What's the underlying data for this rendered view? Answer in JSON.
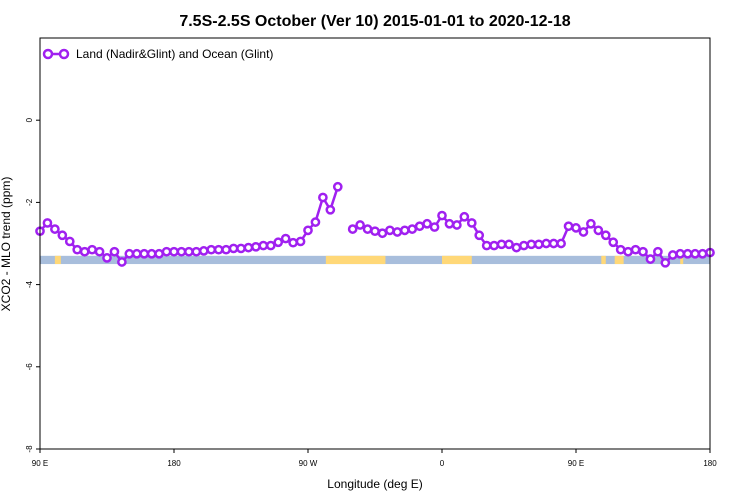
{
  "chart_data": {
    "type": "line",
    "title": "7.5S-2.5S October (Ver 10)   2015-01-01 to 2020-12-18",
    "xlabel": "Longitude (deg E)",
    "ylabel": "XCO2 - MLO trend (ppm)",
    "xlim": [
      90,
      450
    ],
    "ylim": [
      -8,
      2
    ],
    "x_ticks": [
      {
        "value": 90,
        "label": "90 E"
      },
      {
        "value": 180,
        "label": "180"
      },
      {
        "value": 270,
        "label": "90 W"
      },
      {
        "value": 360,
        "label": "0"
      },
      {
        "value": 450,
        "label": "90 E"
      },
      {
        "value": 540,
        "label": "180"
      }
    ],
    "y_ticks": [
      {
        "value": 0,
        "label": "0"
      },
      {
        "value": -2,
        "label": "-2"
      },
      {
        "value": -4,
        "label": "-4"
      },
      {
        "value": -6,
        "label": "-6"
      },
      {
        "value": -8,
        "label": "-8"
      }
    ],
    "grid": false,
    "legend_position": "top-left",
    "series": [
      {
        "name": "Land (Nadir&Glint) and Ocean (Glint)",
        "color": "#a020f0",
        "points": [
          [
            90,
            -2.7
          ],
          [
            95,
            -2.5
          ],
          [
            100,
            -2.65
          ],
          [
            105,
            -2.8
          ],
          [
            110,
            -2.95
          ],
          [
            115,
            -3.15
          ],
          [
            120,
            -3.2
          ],
          [
            125,
            -3.15
          ],
          [
            130,
            -3.2
          ],
          [
            135,
            -3.35
          ],
          [
            140,
            -3.2
          ],
          [
            145,
            -3.45
          ],
          [
            150,
            -3.25
          ],
          [
            155,
            -3.25
          ],
          [
            160,
            -3.25
          ],
          [
            165,
            -3.25
          ],
          [
            170,
            -3.25
          ],
          [
            175,
            -3.2
          ],
          [
            180,
            -3.2
          ],
          [
            185,
            -3.2
          ],
          [
            190,
            -3.2
          ],
          [
            195,
            -3.2
          ],
          [
            200,
            -3.18
          ],
          [
            205,
            -3.15
          ],
          [
            210,
            -3.15
          ],
          [
            215,
            -3.15
          ],
          [
            220,
            -3.12
          ],
          [
            225,
            -3.12
          ],
          [
            230,
            -3.1
          ],
          [
            235,
            -3.08
          ],
          [
            240,
            -3.05
          ],
          [
            245,
            -3.05
          ],
          [
            250,
            -2.97
          ],
          [
            255,
            -2.88
          ],
          [
            260,
            -2.98
          ],
          [
            265,
            -2.95
          ],
          [
            270,
            -2.68
          ],
          [
            275,
            -2.48
          ],
          [
            280,
            -1.88
          ],
          [
            285,
            -2.18
          ],
          [
            290,
            -1.62
          ],
          null,
          [
            300,
            -2.65
          ],
          [
            305,
            -2.55
          ],
          [
            310,
            -2.65
          ],
          [
            315,
            -2.7
          ],
          [
            320,
            -2.75
          ],
          [
            325,
            -2.68
          ],
          [
            330,
            -2.72
          ],
          [
            335,
            -2.68
          ],
          [
            340,
            -2.65
          ],
          [
            345,
            -2.58
          ],
          [
            350,
            -2.52
          ],
          [
            355,
            -2.6
          ],
          [
            360,
            -2.32
          ],
          [
            365,
            -2.52
          ],
          [
            370,
            -2.55
          ],
          [
            375,
            -2.35
          ],
          [
            380,
            -2.5
          ],
          [
            385,
            -2.8
          ],
          [
            390,
            -3.05
          ],
          [
            395,
            -3.05
          ],
          [
            400,
            -3.02
          ],
          [
            405,
            -3.02
          ],
          [
            410,
            -3.1
          ],
          [
            415,
            -3.05
          ],
          [
            420,
            -3.02
          ],
          [
            425,
            -3.02
          ],
          [
            430,
            -3.0
          ],
          [
            435,
            -3.0
          ],
          [
            440,
            -3.0
          ],
          [
            445,
            -2.58
          ],
          [
            450,
            -2.62
          ],
          [
            455,
            -2.72
          ],
          [
            460,
            -2.52
          ],
          [
            465,
            -2.68
          ],
          [
            470,
            -2.8
          ],
          [
            475,
            -2.97
          ],
          [
            480,
            -3.15
          ],
          [
            485,
            -3.2
          ],
          [
            490,
            -3.15
          ],
          [
            495,
            -3.2
          ],
          [
            500,
            -3.38
          ],
          [
            505,
            -3.2
          ],
          [
            510,
            -3.47
          ],
          [
            515,
            -3.28
          ],
          [
            520,
            -3.25
          ],
          [
            525,
            -3.25
          ],
          [
            530,
            -3.25
          ],
          [
            535,
            -3.25
          ],
          [
            540,
            -3.22
          ]
        ]
      }
    ],
    "surface_band": {
      "ocean_color": "#a8bedc",
      "land_color": "#ffd878",
      "land_ranges": [
        [
          100,
          104
        ],
        [
          282,
          322
        ],
        [
          360,
          380
        ],
        [
          467,
          470
        ],
        [
          476,
          482
        ],
        [
          520,
          522
        ]
      ]
    }
  }
}
